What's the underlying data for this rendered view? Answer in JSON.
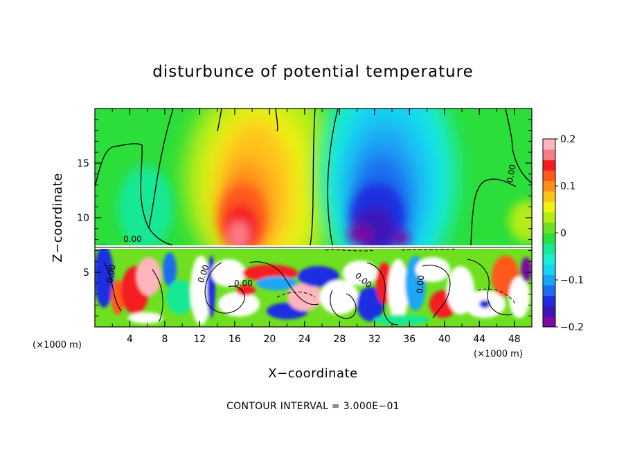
{
  "chart_data": {
    "type": "heatmap",
    "title": "disturbunce of potential temperature",
    "xlabel": "X−coordinate",
    "ylabel": "Z−coordinate",
    "x_unit": "(×1000 m)",
    "y_unit": "(×1000 m)",
    "xlim": [
      0,
      50
    ],
    "ylim": [
      0,
      20
    ],
    "x_ticks": [
      4,
      8,
      12,
      16,
      20,
      24,
      28,
      32,
      36,
      40,
      44,
      48
    ],
    "y_ticks": [
      5,
      10,
      15
    ],
    "colorbar": {
      "range": [
        -0.2,
        0.2
      ],
      "ticks": [
        -0.2,
        -0.1,
        0,
        0.1,
        0.2
      ],
      "tick_labels": [
        "−0.2",
        "−0.1",
        "0",
        "0.1",
        "0.2"
      ],
      "colors": [
        "#7a0ba3",
        "#3d14b5",
        "#1f2ee0",
        "#1e6cf0",
        "#1aa6f5",
        "#19d3f2",
        "#17f0d0",
        "#16e896",
        "#2bde3a",
        "#6fe020",
        "#b4ec12",
        "#eef212",
        "#ffc21a",
        "#ff8f1a",
        "#ff5a1a",
        "#f51a24",
        "#fa7c88",
        "#fdb6bc"
      ]
    },
    "contour_label": "0.00",
    "contour_interval_text": "CONTOUR INTERVAL = 3.000E−01",
    "upper_layer_features": [
      {
        "x": 17,
        "z": 11,
        "value": 0.2,
        "kind": "warm maximum"
      },
      {
        "x": 33,
        "z": 11,
        "value": -0.2,
        "kind": "cold minimum"
      }
    ],
    "lower_layer_top": 7.3,
    "grid": false,
    "legend": "colorbar-right"
  }
}
